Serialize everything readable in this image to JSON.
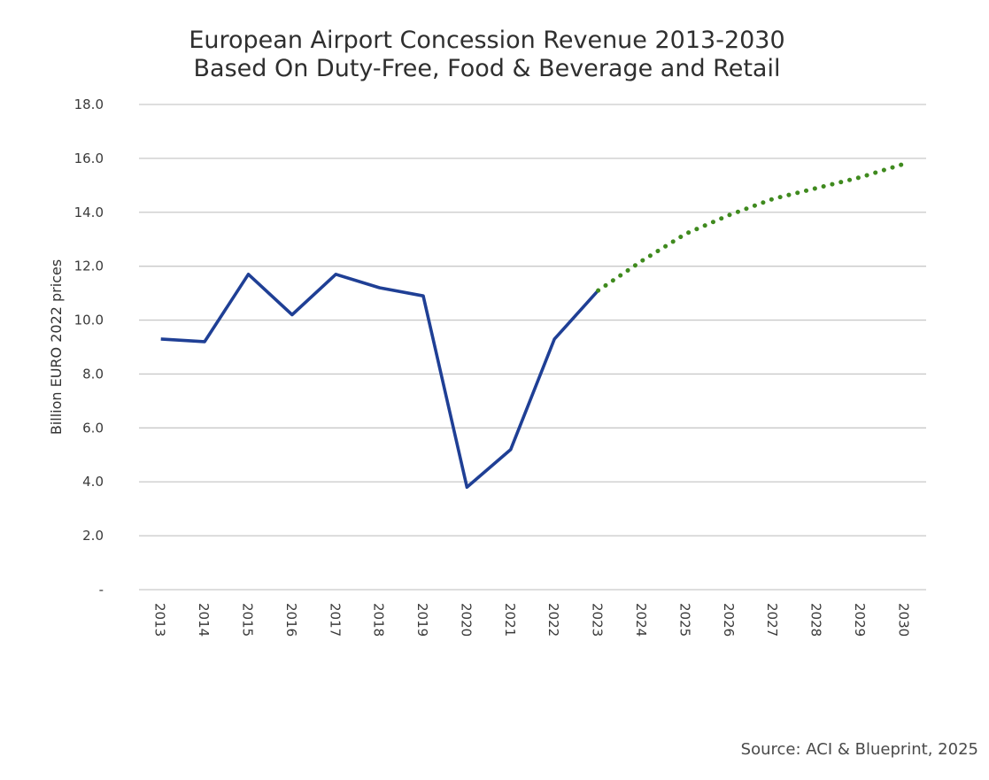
{
  "chart_data": {
    "type": "line",
    "title": "European Airport Concession Revenue 2013-2030",
    "subtitle": "Based On Duty-Free, Food & Beverage and Retail",
    "ylabel": "Billion EURO 2022 prices",
    "xlabel": "",
    "ylim": [
      0,
      18
    ],
    "y_ticks": [
      {
        "value": 0,
        "label": "-"
      },
      {
        "value": 2,
        "label": "2.0"
      },
      {
        "value": 4,
        "label": "4.0"
      },
      {
        "value": 6,
        "label": "6.0"
      },
      {
        "value": 8,
        "label": "8.0"
      },
      {
        "value": 10,
        "label": "10.0"
      },
      {
        "value": 12,
        "label": "12.0"
      },
      {
        "value": 14,
        "label": "14.0"
      },
      {
        "value": 16,
        "label": "16.0"
      },
      {
        "value": 18,
        "label": "18.0"
      }
    ],
    "categories": [
      "2013",
      "2014",
      "2015",
      "2016",
      "2017",
      "2018",
      "2019",
      "2020",
      "2021",
      "2022",
      "2023",
      "2024",
      "2025",
      "2026",
      "2027",
      "2028",
      "2029",
      "2030"
    ],
    "grid": "horizontal",
    "legend": "none",
    "series": [
      {
        "style": "solid",
        "color": "#1f3f95",
        "x": [
          "2013",
          "2014",
          "2015",
          "2016",
          "2017",
          "2018",
          "2019",
          "2020",
          "2021",
          "2022",
          "2023"
        ],
        "values": [
          9.3,
          9.2,
          11.7,
          10.2,
          11.7,
          11.2,
          10.9,
          3.8,
          5.2,
          9.3,
          11.1
        ]
      },
      {
        "style": "dotted",
        "color": "#3f8a1e",
        "x": [
          "2023",
          "2024",
          "2025",
          "2026",
          "2027",
          "2028",
          "2029",
          "2030"
        ],
        "values": [
          11.1,
          12.2,
          13.2,
          13.9,
          14.5,
          14.9,
          15.3,
          15.8
        ]
      }
    ]
  },
  "source_note": "Source: ACI & Blueprint, 2025"
}
